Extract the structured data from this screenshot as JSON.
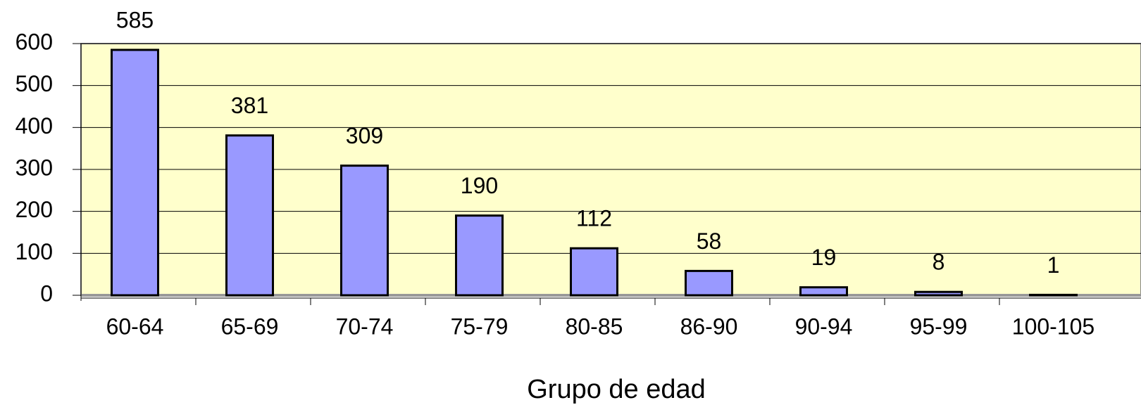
{
  "chart_data": {
    "type": "bar",
    "xlabel": "Grupo de edad",
    "categories": [
      "60-64",
      "65-69",
      "70-74",
      "75-79",
      "80-85",
      "86-90",
      "90-94",
      "95-99",
      "100-105"
    ],
    "values": [
      585,
      381,
      309,
      190,
      112,
      58,
      19,
      8,
      1
    ],
    "color": "#9999ff",
    "background": "#ffffcc",
    "ylim": [
      0,
      600
    ],
    "yticks": [
      0,
      100,
      200,
      300,
      400,
      500,
      600
    ],
    "grid": true
  }
}
